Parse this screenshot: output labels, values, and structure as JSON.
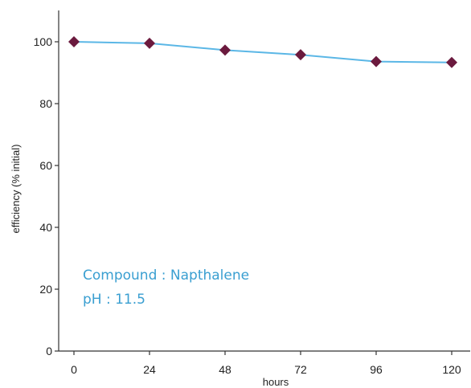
{
  "chart_data": {
    "type": "line",
    "title": "",
    "xlabel": "hours",
    "ylabel": "efficiency (% initial)",
    "x": [
      0,
      24,
      48,
      72,
      96,
      120
    ],
    "series": [
      {
        "values": [
          100,
          99.5,
          97.3,
          95.8,
          93.6,
          93.3
        ],
        "color": "#5bb7e6",
        "marker": "diamond",
        "marker_color": "#6b1a3e"
      }
    ],
    "xlim": [
      0,
      120
    ],
    "ylim": [
      0,
      100
    ],
    "xticks": [
      "0",
      "24",
      "48",
      "72",
      "96",
      "120"
    ],
    "yticks": [
      "0",
      "20",
      "40",
      "60",
      "80",
      "100"
    ],
    "grid": false,
    "annotations": [
      "Compound : Napthalene",
      "pH : 11.5"
    ],
    "annotation_color": "#3a9fd1"
  }
}
